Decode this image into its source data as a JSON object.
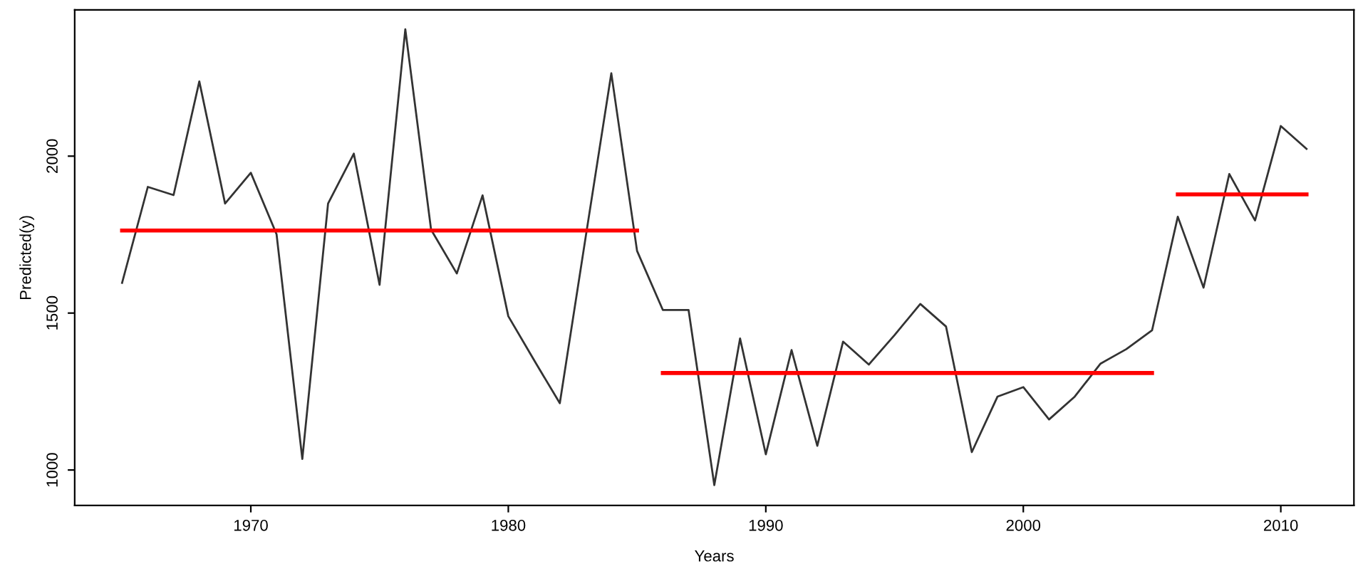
{
  "chart_data": {
    "type": "line",
    "xlabel": "Years",
    "ylabel": "Predicted(y)",
    "xlim": [
      1963.16,
      2012.84
    ],
    "xticks": [
      1970,
      1980,
      1990,
      2000,
      2010
    ],
    "ylim": [
      887,
      2466
    ],
    "yticks": [
      1000,
      1500,
      2000
    ],
    "grid": false,
    "legend": false,
    "series": [
      {
        "color": "#333333",
        "x": [
          1965,
          1966,
          1967,
          1968,
          1969,
          1970,
          1971,
          1972,
          1973,
          1974,
          1975,
          1976,
          1977,
          1978,
          1979,
          1980,
          1981,
          1982,
          1983,
          1984,
          1985,
          1986,
          1987,
          1988,
          1989,
          1990,
          1991,
          1992,
          1993,
          1994,
          1995,
          1996,
          1997,
          1998,
          1999,
          2000,
          2001,
          2002,
          2003,
          2004,
          2005,
          2006,
          2007,
          2008,
          2009,
          2010,
          2011
        ],
        "values": [
          1596,
          1902,
          1876,
          2238,
          1849,
          1947,
          1751,
          1035,
          1849,
          2008,
          1590,
          2404,
          1766,
          1626,
          1875,
          1490,
          1350,
          1213,
          1740,
          2264,
          1698,
          1510,
          1510,
          952,
          1419,
          1050,
          1382,
          1077,
          1409,
          1336,
          1430,
          1529,
          1457,
          1057,
          1234,
          1264,
          1161,
          1234,
          1339,
          1385,
          1445,
          1807,
          1581,
          1943,
          1795,
          2096,
          2023
        ]
      },
      {
        "color": "#ff0000",
        "x": [
          1965,
          1985
        ],
        "values": [
          1763,
          1763
        ]
      },
      {
        "color": "#ff0000",
        "x": [
          1986,
          2005
        ],
        "values": [
          1309,
          1309
        ]
      },
      {
        "color": "#ff0000",
        "x": [
          2006,
          2011
        ],
        "values": [
          1878,
          1878
        ]
      }
    ]
  }
}
